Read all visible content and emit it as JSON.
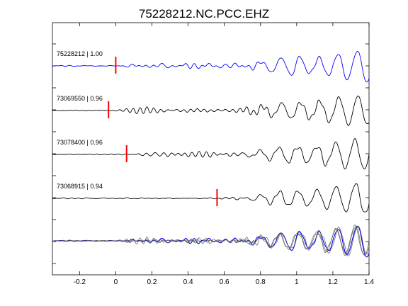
{
  "chart_data": {
    "type": "line",
    "title": "75228212.NC.PCC.EHZ",
    "xlim": [
      -0.35,
      1.4
    ],
    "xticks": [
      -0.2,
      0,
      0.2,
      0.4,
      0.6,
      0.8,
      1.0,
      1.2,
      1.4
    ],
    "xtick_labels": [
      "-0.2",
      "0",
      "0.2",
      "0.4",
      "0.6",
      "0.8",
      "1",
      "1.2",
      "1.4"
    ],
    "grid": false,
    "colors": {
      "reference": "#0000ff",
      "trace": "#000000",
      "stack": "#555555",
      "pick": "#ff0000"
    },
    "traces": [
      {
        "label": "75228212 | 1.00",
        "color": "reference",
        "pick_time": 0.0,
        "shift": 0.0
      },
      {
        "label": "73069550 | 0.96",
        "color": "trace",
        "pick_time": -0.04,
        "shift": 0.0
      },
      {
        "label": "73078400 | 0.96",
        "color": "trace",
        "pick_time": 0.06,
        "shift": 0.0
      },
      {
        "label": "73068915 | 0.94",
        "color": "trace",
        "pick_time": 0.56,
        "shift": 0.0
      }
    ],
    "stack": {
      "label": "",
      "overlay_count": 4
    }
  }
}
